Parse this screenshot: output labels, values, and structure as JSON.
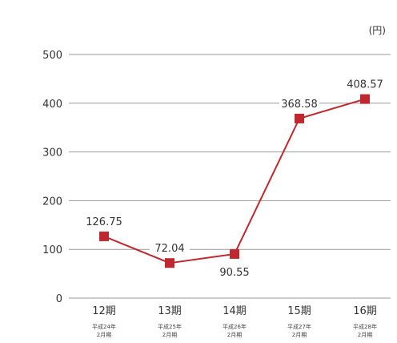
{
  "chart_data": {
    "type": "line",
    "unit_label": "(円)",
    "categories": [
      "12期",
      "13期",
      "14期",
      "15期",
      "16期"
    ],
    "category_sublabels": [
      [
        "平成24年",
        "2月期"
      ],
      [
        "平成25年",
        "2月期"
      ],
      [
        "平成26年",
        "2月期"
      ],
      [
        "平成27年",
        "2月期"
      ],
      [
        "平成28年",
        "2月期"
      ]
    ],
    "values": [
      126.75,
      72.04,
      90.55,
      368.58,
      408.57
    ],
    "data_labels": [
      "126.75",
      "72.04",
      "90.55",
      "368.58",
      "408.57"
    ],
    "y_ticks": [
      0,
      100,
      200,
      300,
      400,
      500
    ],
    "ylim": [
      0,
      500
    ],
    "grid": true,
    "colors": {
      "line": "#c0282f",
      "marker": "#c0282f",
      "grid": "#999999"
    }
  }
}
